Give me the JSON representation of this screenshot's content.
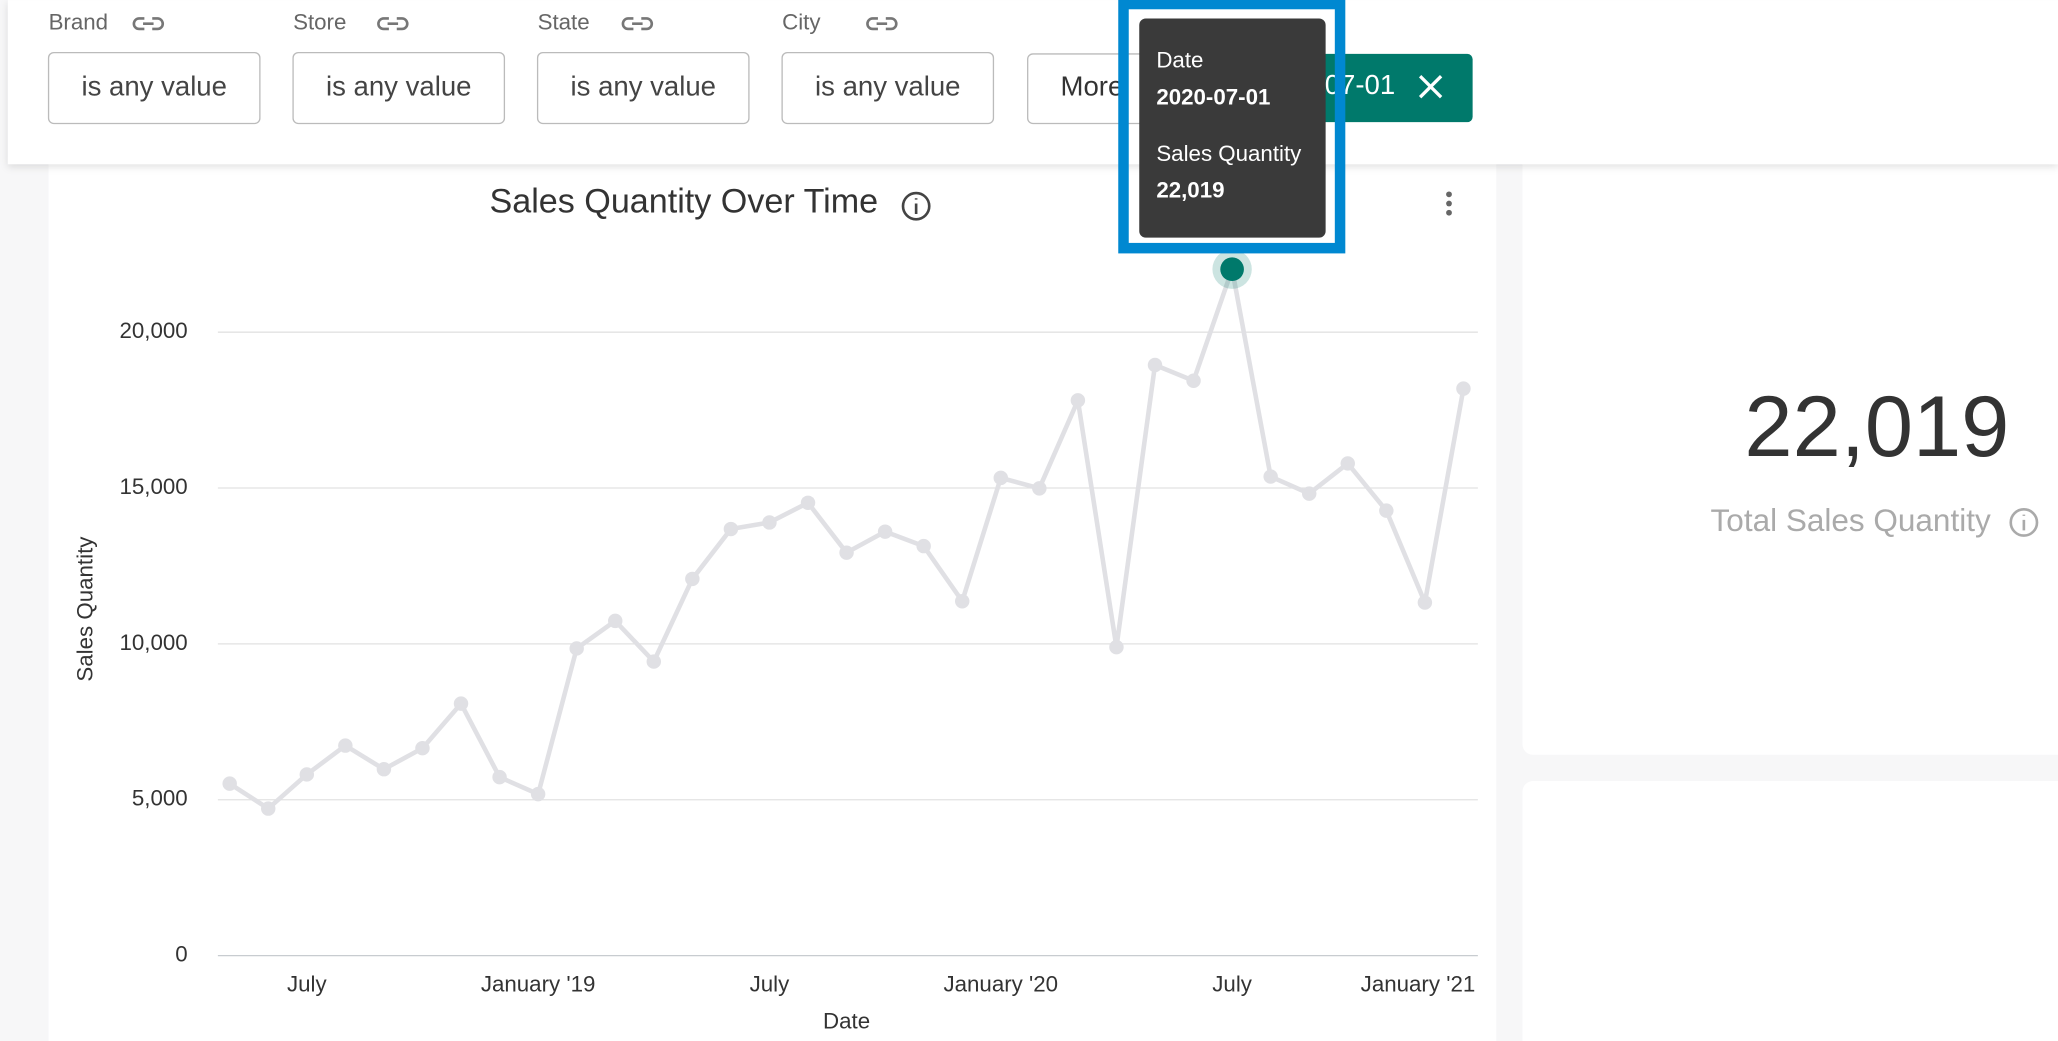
{
  "filters": [
    {
      "label": "Brand",
      "value": "is any value"
    },
    {
      "label": "Store",
      "value": "is any value"
    },
    {
      "label": "State",
      "value": "is any value"
    },
    {
      "label": "City",
      "value": "is any value"
    }
  ],
  "more_button": "More",
  "date_chip": "07-01",
  "tooltip": {
    "date_label": "Date",
    "date": "2020-07-01",
    "value_label": "Sales Quantity",
    "value": "22,019"
  },
  "kpi": {
    "value": "22,019",
    "label": "Total Sales Quantity"
  },
  "chart_data": {
    "type": "line",
    "title": "Sales Quantity Over Time",
    "x_label": "Date",
    "y_label": "Sales Quantity",
    "x": [
      "2018-05-01",
      "2018-06-01",
      "2018-07-01",
      "2018-08-01",
      "2018-09-01",
      "2018-10-01",
      "2018-11-01",
      "2018-12-01",
      "2019-01-01",
      "2019-02-01",
      "2019-03-01",
      "2019-04-01",
      "2019-05-01",
      "2019-06-01",
      "2019-07-01",
      "2019-08-01",
      "2019-09-01",
      "2019-10-01",
      "2019-11-01",
      "2019-12-01",
      "2020-01-01",
      "2020-02-01",
      "2020-03-01",
      "2020-04-01",
      "2020-05-01",
      "2020-06-01",
      "2020-07-01",
      "2020-08-01",
      "2020-09-01",
      "2020-10-01",
      "2020-11-01",
      "2020-12-01",
      "2021-01-01"
    ],
    "values": [
      5516,
      4716,
      5811,
      6737,
      5979,
      6653,
      8084,
      5726,
      5179,
      9853,
      10737,
      9432,
      12084,
      13684,
      13895,
      14526,
      12926,
      13600,
      13137,
      11368,
      15326,
      14989,
      17811,
      9895,
      18947,
      18442,
      22019,
      15368,
      14821,
      15789,
      14274,
      11326,
      18189
    ],
    "color": "#e0e0e4",
    "highlight_color": "#00796b",
    "xlim": [
      "2018-05-01",
      "2021-01-01"
    ],
    "xticks": [
      {
        "value": "2018-07-01",
        "label": "July"
      },
      {
        "value": "2019-01-01",
        "label": "January '19"
      },
      {
        "value": "2019-07-01",
        "label": "July"
      },
      {
        "value": "2020-01-01",
        "label": "January '20"
      },
      {
        "value": "2020-07-01",
        "label": "July"
      },
      {
        "value": "2021-01-01",
        "label": "January '21"
      }
    ],
    "ylim": [
      0,
      20000
    ],
    "yticks": [
      0,
      {
        "value": 5000,
        "label": "5,000"
      },
      {
        "value": 10000,
        "label": "10,000"
      },
      {
        "value": 15000,
        "label": "15,000"
      },
      {
        "value": 20000,
        "label": "20,000"
      }
    ],
    "grid": true
  }
}
